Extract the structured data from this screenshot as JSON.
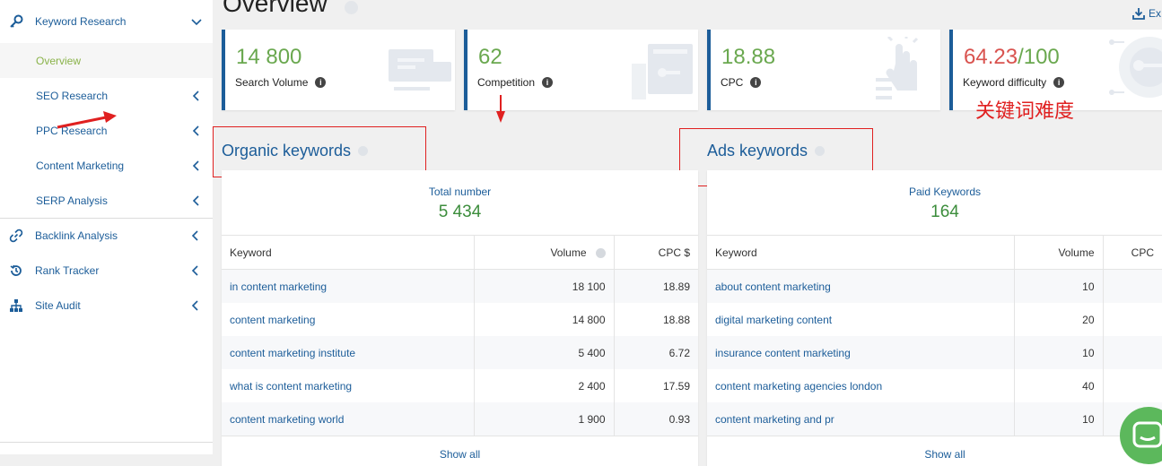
{
  "sidebar": {
    "keyword_research": "Keyword Research",
    "items": [
      {
        "label": "Overview",
        "active": true
      },
      {
        "label": "SEO Research"
      },
      {
        "label": "PPC Research"
      },
      {
        "label": "Content Marketing"
      },
      {
        "label": "SERP Analysis"
      }
    ],
    "groups": [
      {
        "label": "Backlink Analysis",
        "icon": "link-icon"
      },
      {
        "label": "Rank Tracker",
        "icon": "history-icon"
      },
      {
        "label": "Site Audit",
        "icon": "sitemap-icon"
      }
    ]
  },
  "header": {
    "title": "Overview",
    "export_label": "Ex"
  },
  "cards": [
    {
      "value": "14 800",
      "label": "Search Volume"
    },
    {
      "value": "62",
      "label": "Competition"
    },
    {
      "value": "18.88",
      "label": "CPC"
    },
    {
      "value": "64.23",
      "value_suffix": "/100",
      "label": "Keyword difficulty"
    }
  ],
  "organic": {
    "title": "Organic keywords",
    "total_label": "Total number",
    "total_value": "5 434",
    "columns": [
      "Keyword",
      "Volume",
      "CPC $"
    ],
    "rows": [
      {
        "keyword": "in content marketing",
        "volume": "18 100",
        "cpc": "18.89"
      },
      {
        "keyword": "content marketing",
        "volume": "14 800",
        "cpc": "18.88"
      },
      {
        "keyword": "content marketing institute",
        "volume": "5 400",
        "cpc": "6.72"
      },
      {
        "keyword": "what is content marketing",
        "volume": "2 400",
        "cpc": "17.59"
      },
      {
        "keyword": "content marketing world",
        "volume": "1 900",
        "cpc": "0.93"
      }
    ],
    "show_all": "Show all"
  },
  "ads": {
    "title": "Ads keywords",
    "total_label": "Paid Keywords",
    "total_value": "164",
    "columns": [
      "Keyword",
      "Volume",
      "CPC"
    ],
    "rows": [
      {
        "keyword": "about content marketing",
        "volume": "10"
      },
      {
        "keyword": "digital marketing content",
        "volume": "20"
      },
      {
        "keyword": "insurance content marketing",
        "volume": "10"
      },
      {
        "keyword": "content marketing agencies london",
        "volume": "40"
      },
      {
        "keyword": "content marketing and pr",
        "volume": "10"
      }
    ],
    "show_all": "Show all"
  },
  "annotation": {
    "text": "关键词难度",
    "color": "#e02020"
  },
  "colors": {
    "accent": "#1c5d99",
    "green": "#6aa84f",
    "red": "#d9534f"
  }
}
